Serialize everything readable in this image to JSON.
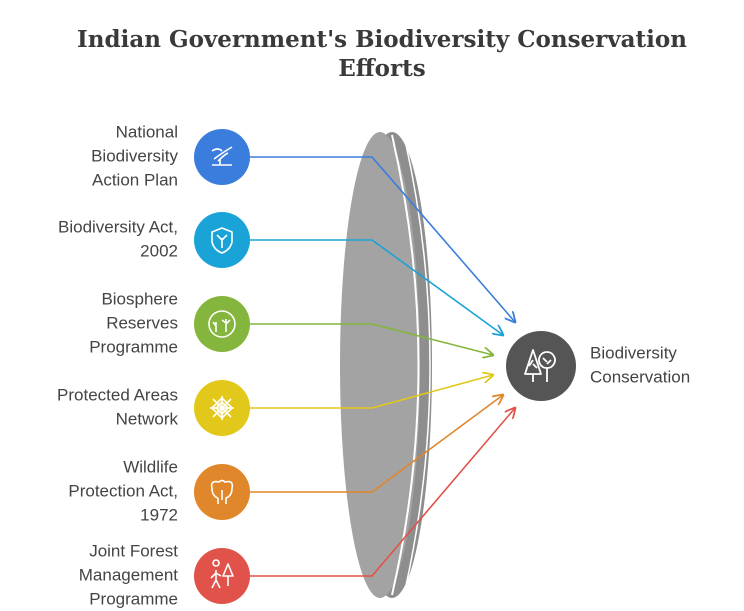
{
  "title": "Indian Government's Biodiversity Conservation Efforts",
  "nodes": [
    {
      "label_lines": [
        "National",
        "Biodiversity",
        "Action Plan"
      ],
      "color": "#3b7ddd"
    },
    {
      "label_lines": [
        "Biodiversity Act,",
        "2002"
      ],
      "color": "#1aa3d6"
    },
    {
      "label_lines": [
        "Biosphere",
        "Reserves",
        "Programme"
      ],
      "color": "#84b53c"
    },
    {
      "label_lines": [
        "Protected Areas",
        "Network"
      ],
      "color": "#e2c81a"
    },
    {
      "label_lines": [
        "Wildlife",
        "Protection Act,",
        "1972"
      ],
      "color": "#e0872b"
    },
    {
      "label_lines": [
        "Joint Forest",
        "Management",
        "Programme"
      ],
      "color": "#e0524a"
    }
  ],
  "target": {
    "label_lines": [
      "Biodiversity",
      "Conservation"
    ],
    "color": "#555555"
  }
}
